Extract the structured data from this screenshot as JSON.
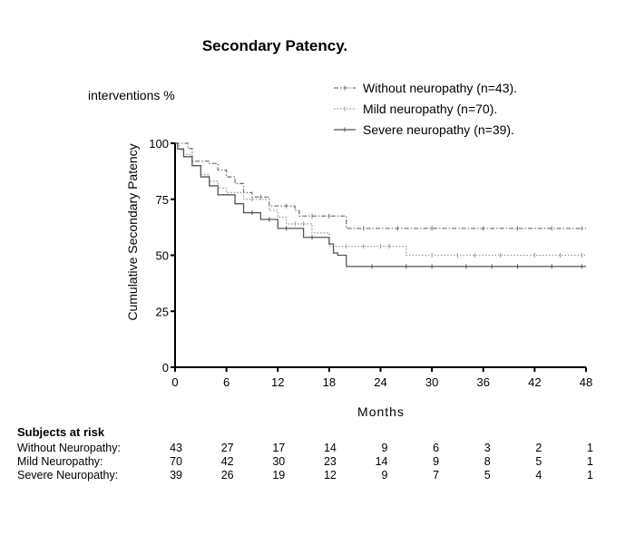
{
  "chart_data": {
    "type": "line",
    "title": "Secondary Patency.",
    "subtitle": "interventions %",
    "ylabel": "Cumulative Secondary Patency",
    "xlabel": "Months",
    "xlim": [
      0,
      48
    ],
    "ylim": [
      0,
      100
    ],
    "xticks": [
      0,
      6,
      12,
      18,
      24,
      30,
      36,
      42,
      48
    ],
    "yticks": [
      0,
      25,
      50,
      75,
      100
    ],
    "grid": false,
    "legend": "top-right",
    "series": [
      {
        "name": "Without neuropathy (n=43).",
        "style": "dash-dot",
        "color": "#777777",
        "steps": [
          [
            0,
            100
          ],
          [
            1.5,
            97.7
          ],
          [
            2,
            92
          ],
          [
            4,
            91
          ],
          [
            5,
            88
          ],
          [
            6,
            85
          ],
          [
            7,
            82
          ],
          [
            8,
            78
          ],
          [
            9,
            76
          ],
          [
            11,
            72
          ],
          [
            14,
            70
          ],
          [
            14.5,
            67.5
          ],
          [
            20,
            62
          ],
          [
            48,
            62
          ]
        ],
        "censored": [
          10,
          13,
          16,
          18,
          22,
          26,
          30,
          36,
          40,
          44,
          47.5
        ]
      },
      {
        "name": "Mild neuropathy (n=70).",
        "style": "dotted",
        "color": "#999999",
        "steps": [
          [
            0,
            100
          ],
          [
            0.5,
            97
          ],
          [
            1,
            95
          ],
          [
            2,
            90
          ],
          [
            3,
            86
          ],
          [
            4,
            83
          ],
          [
            5,
            80
          ],
          [
            6,
            78
          ],
          [
            8,
            75
          ],
          [
            11,
            70
          ],
          [
            12,
            67
          ],
          [
            13,
            64
          ],
          [
            16,
            60
          ],
          [
            18,
            54
          ],
          [
            27,
            50
          ],
          [
            48,
            50
          ]
        ],
        "censored": [
          9,
          14,
          15,
          20,
          22,
          24,
          25,
          30,
          33,
          35,
          38,
          42,
          45,
          47.5
        ]
      },
      {
        "name": "Severe neuropathy (n=39).",
        "style": "solid",
        "color": "#555555",
        "steps": [
          [
            0,
            100
          ],
          [
            0.3,
            97.5
          ],
          [
            1,
            94
          ],
          [
            2,
            90
          ],
          [
            3,
            85
          ],
          [
            4,
            81
          ],
          [
            5,
            77
          ],
          [
            7,
            73
          ],
          [
            8,
            69
          ],
          [
            10,
            66
          ],
          [
            12,
            62
          ],
          [
            15,
            58
          ],
          [
            18,
            55
          ],
          [
            18.5,
            51
          ],
          [
            19,
            50
          ],
          [
            20,
            45
          ],
          [
            48,
            45
          ]
        ],
        "censored": [
          9,
          11,
          13,
          16,
          23,
          27,
          30,
          34,
          37,
          40,
          44,
          47.5
        ]
      }
    ]
  },
  "risk_table": {
    "heading": "Subjects at risk",
    "columns": [
      0,
      6,
      12,
      18,
      24,
      30,
      36,
      42,
      48
    ],
    "rows": [
      {
        "label": "Without Neuropathy:",
        "values": [
          "43",
          "27",
          "17",
          "14",
          "9",
          "6",
          "3",
          "2",
          "1"
        ]
      },
      {
        "label": "Mild Neuropathy:",
        "values": [
          "70",
          "42",
          "30",
          "23",
          "14",
          "9",
          "8",
          "5",
          "1"
        ]
      },
      {
        "label": "Severe Neuropathy:",
        "values": [
          "39",
          "26",
          "19",
          "12",
          "9",
          "7",
          "5",
          "4",
          "1"
        ]
      }
    ]
  }
}
